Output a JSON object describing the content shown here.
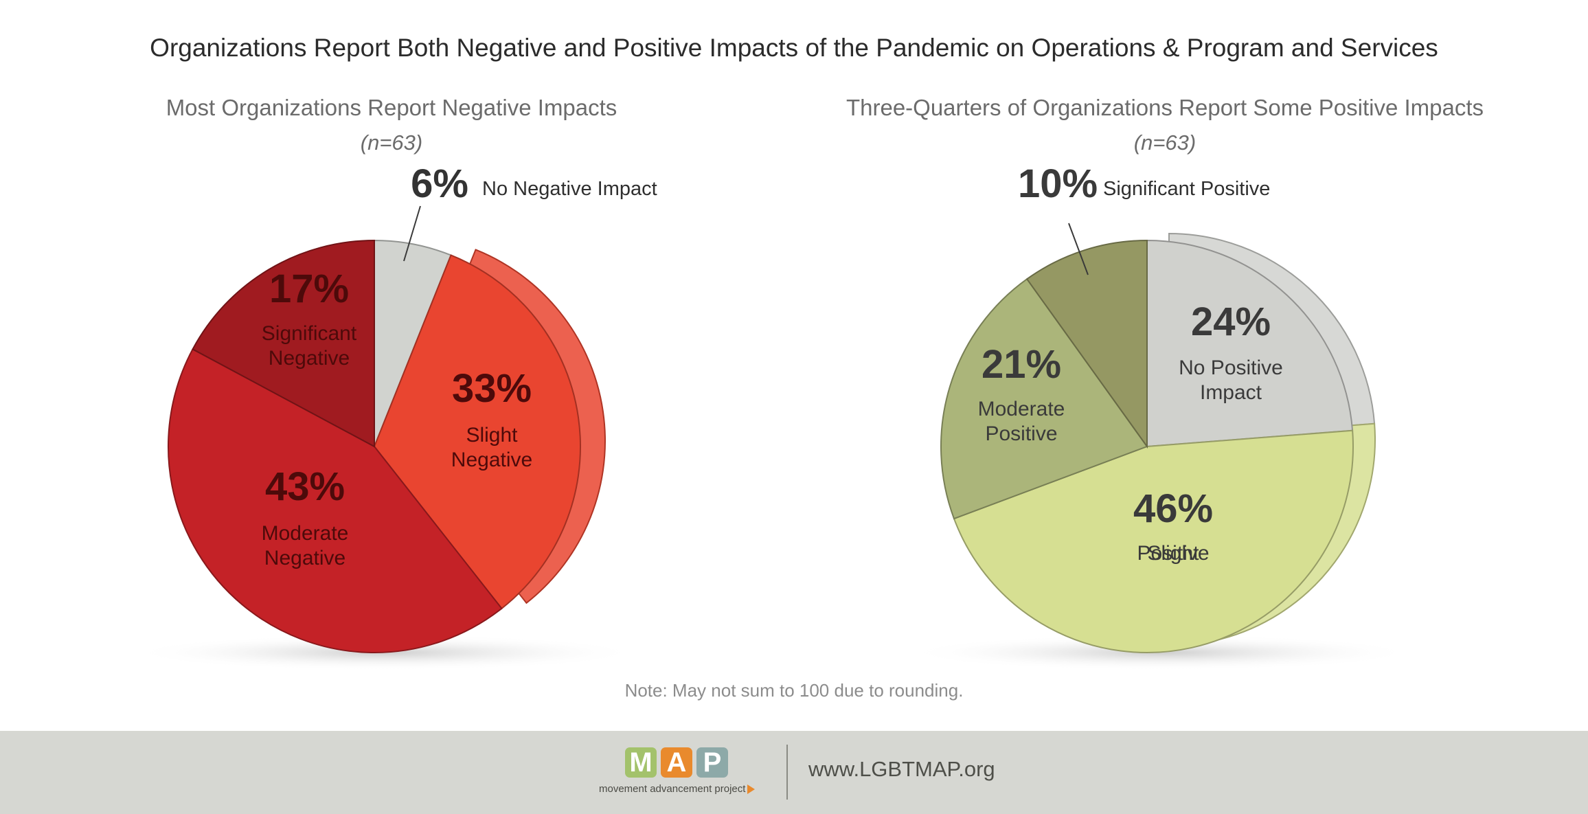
{
  "main_title": "Organizations Report Both Negative and Positive Impacts of the Pandemic on Operations & Program and Services",
  "note": "Note: May not sum to 100 due to rounding.",
  "footer": {
    "logo_letters": [
      "M",
      "A",
      "P"
    ],
    "logo_colors": [
      "#a3c26b",
      "#e98a2d",
      "#8da9a8"
    ],
    "logo_subtitle": "movement advancement project",
    "url": "www.LGBTMAP.org"
  },
  "chart_data": [
    {
      "type": "pie",
      "title": "Most Organizations Report Negative Impacts",
      "subtitle": "(n=63)",
      "slices": [
        {
          "label": "No Negative Impact",
          "value": 6,
          "value_label": "6%",
          "color": "#d1d3cf"
        },
        {
          "label": "Slight Negative",
          "value": 33,
          "value_label": "33%",
          "color": "#e94530"
        },
        {
          "label": "Moderate Negative",
          "value": 43,
          "value_label": "43%",
          "color": "#c42227"
        },
        {
          "label": "Significant Negative",
          "value": 17,
          "value_label": "17%",
          "color": "#a01b20"
        }
      ]
    },
    {
      "type": "pie",
      "title": "Three-Quarters of Organizations Report Some Positive Impacts",
      "subtitle": "(n=63)",
      "slices": [
        {
          "label": "No Positive Impact",
          "value": 24,
          "value_label": "24%",
          "color": "#d0d1cd"
        },
        {
          "label": "Slight Positive",
          "value": 46,
          "value_label": "46%",
          "color": "#d6df92"
        },
        {
          "label": "Moderate Positive",
          "value": 21,
          "value_label": "21%",
          "color": "#abb57a"
        },
        {
          "label": "Significant Positive",
          "value": 10,
          "value_label": "10%",
          "color": "#959863"
        }
      ]
    }
  ]
}
